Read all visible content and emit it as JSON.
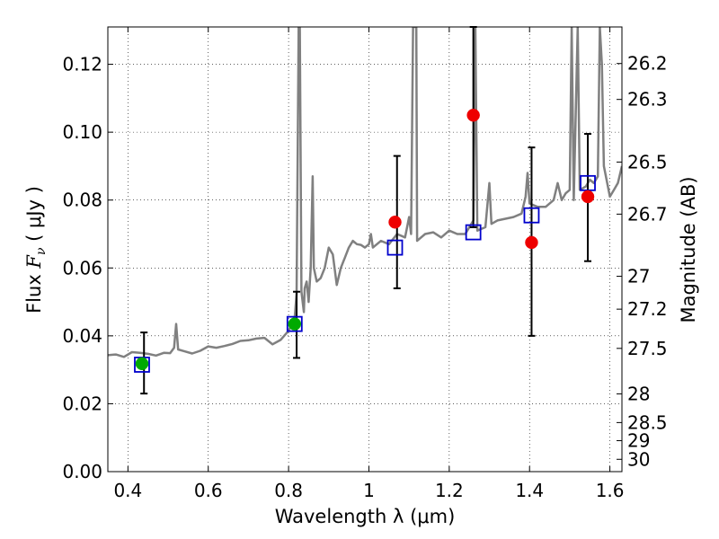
{
  "chart_data": {
    "type": "scatter",
    "xlabel": "Wavelength  λ (μm)",
    "ylabel_prefix": "Flux  ",
    "ylabel_symbol": "F",
    "ylabel_sub": "ν",
    "ylabel_suffix": "  ( μJy )",
    "y2label": "Magnitude (AB)",
    "xlim": [
      0.35,
      1.63
    ],
    "ylim": [
      0.0,
      0.131
    ],
    "grid": true,
    "x_ticks": [
      {
        "value": 0.4,
        "label": "0.4"
      },
      {
        "value": 0.6,
        "label": "0.6"
      },
      {
        "value": 0.8,
        "label": "0.8"
      },
      {
        "value": 1.0,
        "label": "1"
      },
      {
        "value": 1.2,
        "label": "1.2"
      },
      {
        "value": 1.4,
        "label": "1.4"
      },
      {
        "value": 1.6,
        "label": "1.6"
      }
    ],
    "y_ticks": [
      {
        "value": 0.0,
        "label": "0.00"
      },
      {
        "value": 0.02,
        "label": "0.02"
      },
      {
        "value": 0.04,
        "label": "0.04"
      },
      {
        "value": 0.06,
        "label": "0.06"
      },
      {
        "value": 0.08,
        "label": "0.08"
      },
      {
        "value": 0.1,
        "label": "0.10"
      },
      {
        "value": 0.12,
        "label": "0.12"
      }
    ],
    "y2_ticks": [
      {
        "mag": 26.2,
        "label": "26.2"
      },
      {
        "mag": 26.3,
        "label": "26.3"
      },
      {
        "mag": 26.5,
        "label": "26.5"
      },
      {
        "mag": 26.7,
        "label": "26.7"
      },
      {
        "mag": 27.0,
        "label": "27"
      },
      {
        "mag": 27.2,
        "label": "27.2"
      },
      {
        "mag": 27.5,
        "label": "27.5"
      },
      {
        "mag": 28.0,
        "label": "28"
      },
      {
        "mag": 28.5,
        "label": "28.5"
      },
      {
        "mag": 29.0,
        "label": "29"
      },
      {
        "mag": 30.0,
        "label": "30"
      }
    ],
    "series": [
      {
        "kind": "line",
        "color": "#808080",
        "points": [
          [
            0.35,
            0.0343
          ],
          [
            0.37,
            0.0345
          ],
          [
            0.39,
            0.0338
          ],
          [
            0.41,
            0.0352
          ],
          [
            0.43,
            0.035
          ],
          [
            0.45,
            0.0347
          ],
          [
            0.47,
            0.0342
          ],
          [
            0.49,
            0.035
          ],
          [
            0.505,
            0.0349
          ],
          [
            0.515,
            0.0365
          ],
          [
            0.52,
            0.0435
          ],
          [
            0.525,
            0.036
          ],
          [
            0.54,
            0.0355
          ],
          [
            0.56,
            0.0348
          ],
          [
            0.58,
            0.0356
          ],
          [
            0.6,
            0.0369
          ],
          [
            0.62,
            0.0365
          ],
          [
            0.64,
            0.037
          ],
          [
            0.66,
            0.0376
          ],
          [
            0.68,
            0.0385
          ],
          [
            0.7,
            0.0387
          ],
          [
            0.72,
            0.0392
          ],
          [
            0.74,
            0.0394
          ],
          [
            0.76,
            0.0375
          ],
          [
            0.78,
            0.0388
          ],
          [
            0.8,
            0.0415
          ],
          [
            0.81,
            0.044
          ],
          [
            0.815,
            0.045
          ],
          [
            0.82,
            0.0525
          ],
          [
            0.825,
            0.131
          ],
          [
            0.828,
            0.131
          ],
          [
            0.832,
            0.053
          ],
          [
            0.838,
            0.047
          ],
          [
            0.84,
            0.054
          ],
          [
            0.845,
            0.056
          ],
          [
            0.85,
            0.05
          ],
          [
            0.855,
            0.06
          ],
          [
            0.86,
            0.087
          ],
          [
            0.863,
            0.06
          ],
          [
            0.87,
            0.056
          ],
          [
            0.88,
            0.057
          ],
          [
            0.89,
            0.06
          ],
          [
            0.9,
            0.066
          ],
          [
            0.91,
            0.064
          ],
          [
            0.92,
            0.055
          ],
          [
            0.93,
            0.06
          ],
          [
            0.94,
            0.063
          ],
          [
            0.95,
            0.066
          ],
          [
            0.96,
            0.068
          ],
          [
            0.97,
            0.067
          ],
          [
            0.98,
            0.0668
          ],
          [
            0.99,
            0.066
          ],
          [
            1.0,
            0.067
          ],
          [
            1.005,
            0.07
          ],
          [
            1.01,
            0.066
          ],
          [
            1.03,
            0.068
          ],
          [
            1.05,
            0.067
          ],
          [
            1.07,
            0.07
          ],
          [
            1.09,
            0.069
          ],
          [
            1.1,
            0.075
          ],
          [
            1.105,
            0.07
          ],
          [
            1.11,
            0.131
          ],
          [
            1.118,
            0.131
          ],
          [
            1.12,
            0.068
          ],
          [
            1.14,
            0.07
          ],
          [
            1.16,
            0.0705
          ],
          [
            1.18,
            0.069
          ],
          [
            1.2,
            0.071
          ],
          [
            1.22,
            0.07
          ],
          [
            1.24,
            0.07
          ],
          [
            1.26,
            0.074
          ],
          [
            1.265,
            0.131
          ],
          [
            1.27,
            0.071
          ],
          [
            1.29,
            0.072
          ],
          [
            1.3,
            0.085
          ],
          [
            1.305,
            0.073
          ],
          [
            1.32,
            0.074
          ],
          [
            1.34,
            0.0745
          ],
          [
            1.36,
            0.075
          ],
          [
            1.38,
            0.076
          ],
          [
            1.39,
            0.081
          ],
          [
            1.395,
            0.088
          ],
          [
            1.4,
            0.079
          ],
          [
            1.42,
            0.078
          ],
          [
            1.44,
            0.078
          ],
          [
            1.46,
            0.08
          ],
          [
            1.47,
            0.085
          ],
          [
            1.48,
            0.08
          ],
          [
            1.49,
            0.082
          ],
          [
            1.5,
            0.083
          ],
          [
            1.505,
            0.131
          ],
          [
            1.51,
            0.08
          ],
          [
            1.52,
            0.131
          ],
          [
            1.525,
            0.083
          ],
          [
            1.54,
            0.084
          ],
          [
            1.55,
            0.086
          ],
          [
            1.56,
            0.085
          ],
          [
            1.57,
            0.087
          ],
          [
            1.575,
            0.131
          ],
          [
            1.58,
            0.12
          ],
          [
            1.585,
            0.09
          ],
          [
            1.6,
            0.081
          ],
          [
            1.61,
            0.083
          ],
          [
            1.62,
            0.085
          ],
          [
            1.63,
            0.09
          ]
        ]
      },
      {
        "kind": "open-square",
        "color": "#0000cc",
        "points": [
          [
            0.435,
            0.0315
          ],
          [
            0.815,
            0.0435
          ],
          [
            1.065,
            0.066
          ],
          [
            1.26,
            0.0705
          ],
          [
            1.405,
            0.0755
          ],
          [
            1.545,
            0.085
          ]
        ]
      },
      {
        "kind": "circle",
        "color": "#00aa00",
        "points": [
          [
            0.435,
            0.0318
          ],
          [
            0.815,
            0.0435
          ]
        ]
      },
      {
        "kind": "circle",
        "color": "#ee0000",
        "points": [
          [
            1.065,
            0.0735
          ],
          [
            1.26,
            0.105
          ],
          [
            1.405,
            0.0675
          ],
          [
            1.545,
            0.081
          ]
        ]
      },
      {
        "kind": "errorbar",
        "color": "#000000",
        "bars": [
          [
            0.44,
            0.023,
            0.041
          ],
          [
            0.82,
            0.0335,
            0.053
          ],
          [
            1.07,
            0.054,
            0.093
          ],
          [
            1.26,
            0.072,
            0.131
          ],
          [
            1.405,
            0.04,
            0.0955
          ],
          [
            1.545,
            0.062,
            0.0995
          ]
        ]
      }
    ]
  }
}
